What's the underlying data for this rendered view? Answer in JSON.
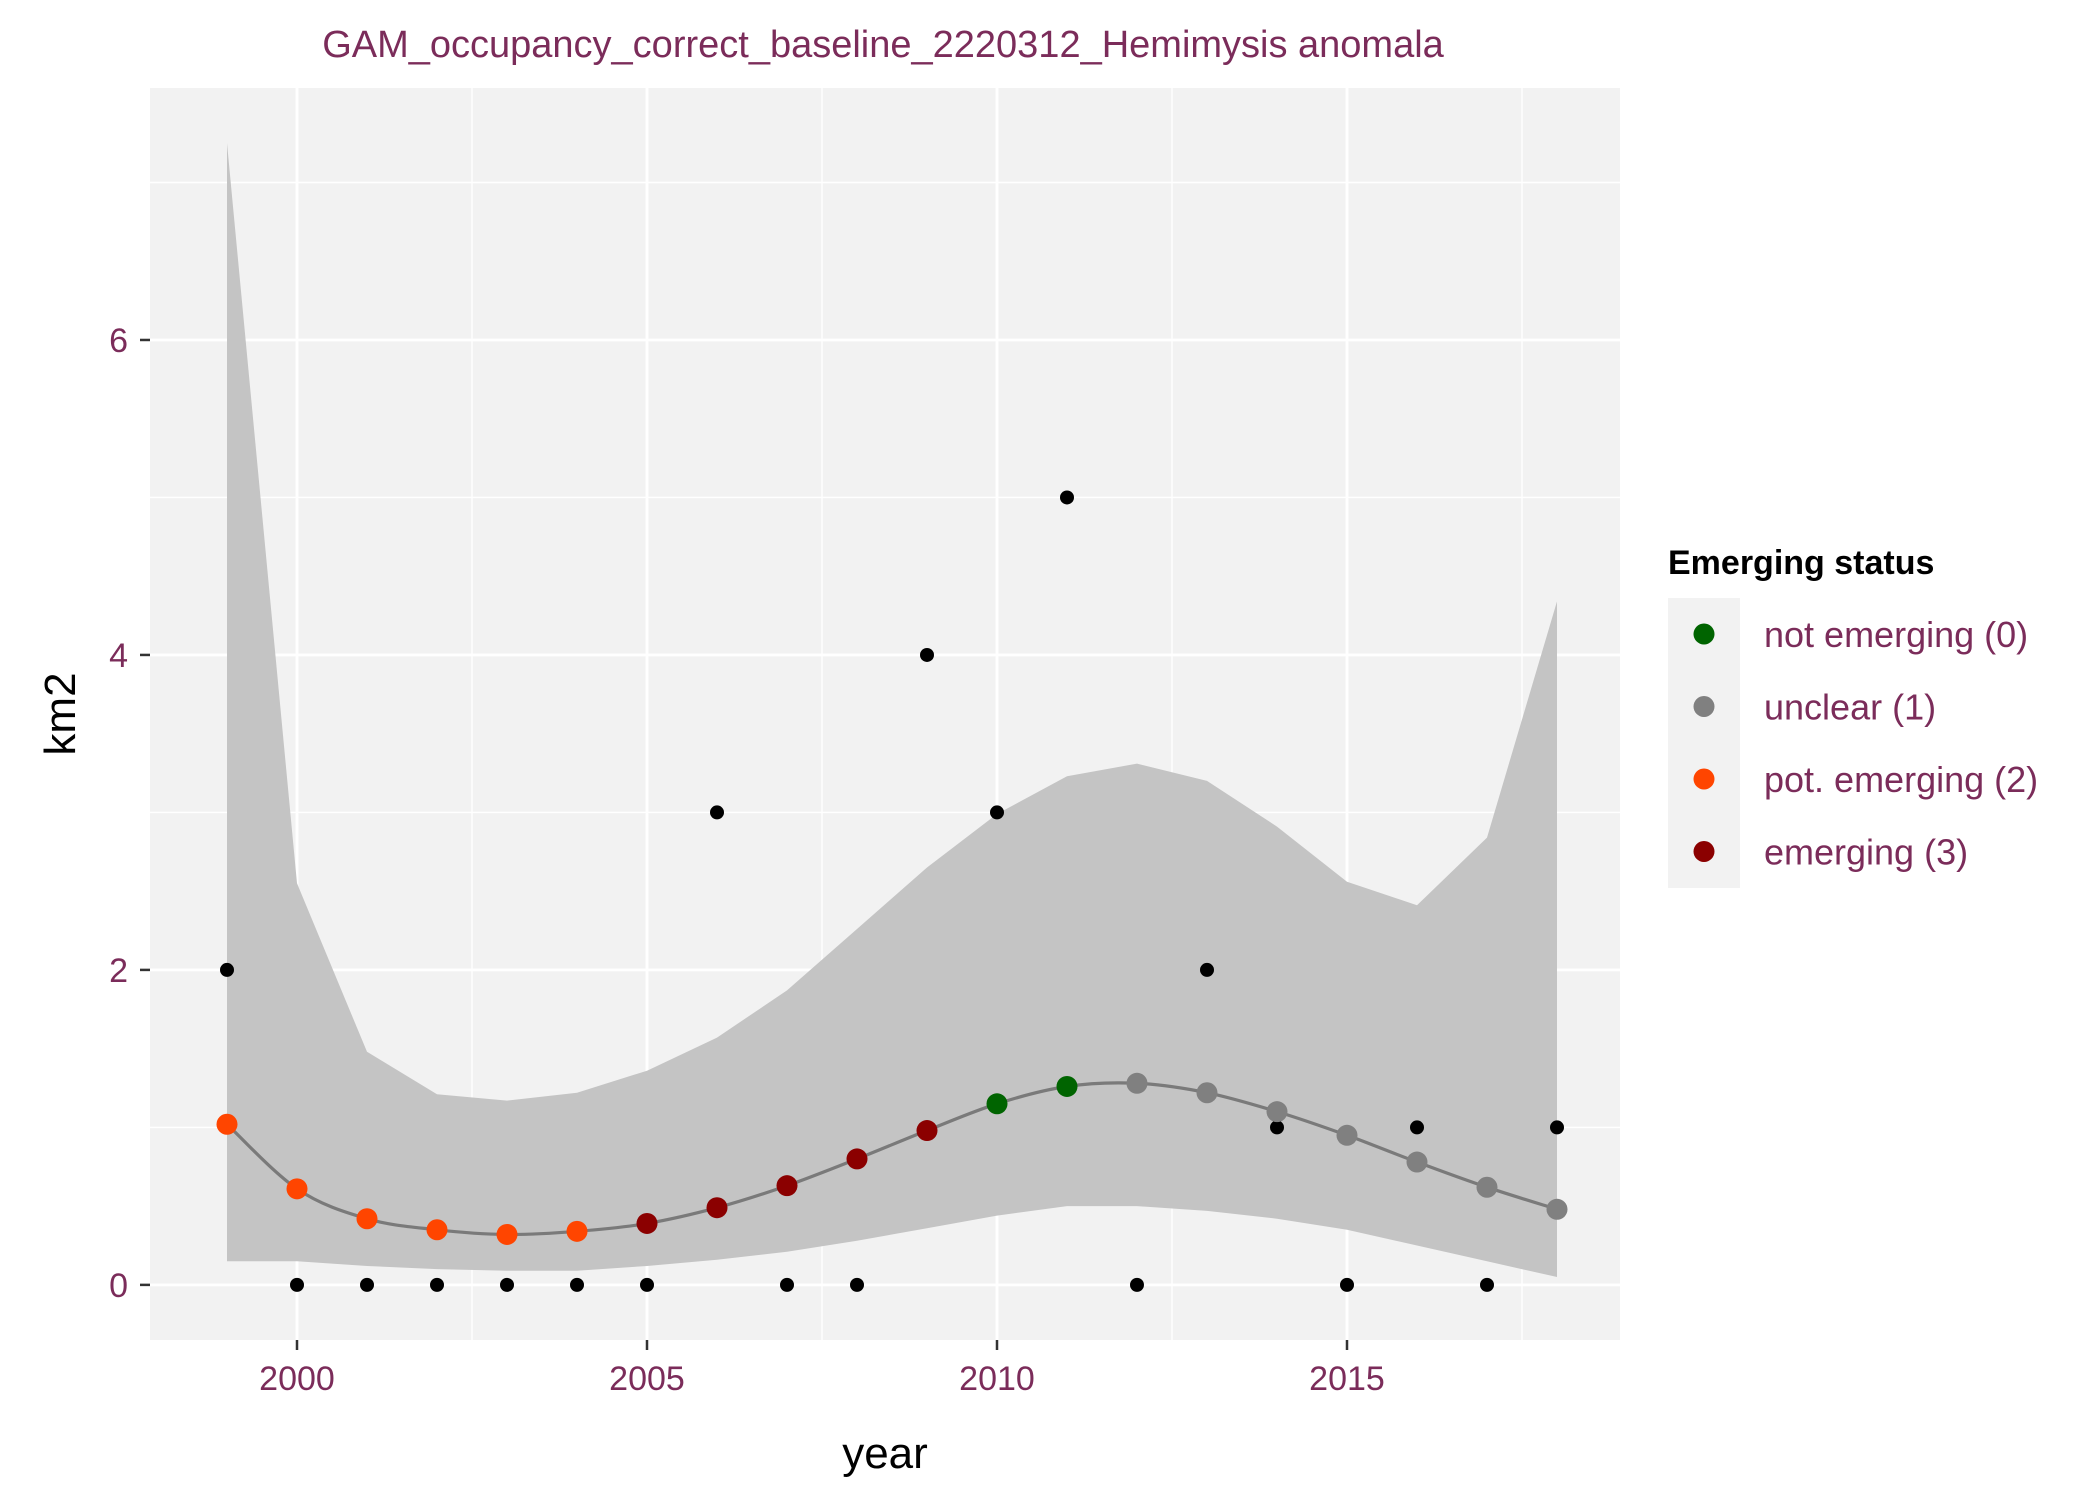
{
  "chart_data": {
    "type": "line",
    "title": "GAM_occupancy_correct_baseline_2220312_Hemimysis anomala",
    "xlabel": "year",
    "ylabel": "km2",
    "xlim": [
      1997.9,
      2018.9
    ],
    "ylim": [
      -0.35,
      7.6
    ],
    "x_ticks": [
      2000,
      2005,
      2010,
      2015
    ],
    "x_tick_labels": [
      "2000",
      "2005",
      "2010",
      "2015"
    ],
    "y_ticks": [
      0,
      2,
      4,
      6
    ],
    "y_tick_labels": [
      "0",
      "2",
      "4",
      "6"
    ],
    "grid": true,
    "legend": {
      "title": "Emerging status",
      "position": "right",
      "entries": [
        {
          "label": "not emerging (0)",
          "color": "#006400"
        },
        {
          "label": "unclear (1)",
          "color": "#808080"
        },
        {
          "label": "pot. emerging (2)",
          "color": "#ff4500"
        },
        {
          "label": "emerging (3)",
          "color": "#8b0000"
        }
      ]
    },
    "colors": {
      "panel": "#f2f2f2",
      "ribbon": "#c4c4c4",
      "fit_line": "#7a7a7a",
      "observed_point": "#000000"
    },
    "observed": {
      "x": [
        1999,
        2000,
        2001,
        2002,
        2003,
        2004,
        2005,
        2006,
        2007,
        2008,
        2009,
        2010,
        2011,
        2012,
        2013,
        2014,
        2015,
        2016,
        2017,
        2018
      ],
      "y": [
        2,
        0,
        0,
        0,
        0,
        0,
        0,
        3,
        0,
        0,
        4,
        3,
        5,
        0,
        2,
        1,
        0,
        1,
        0,
        1
      ]
    },
    "fitted": {
      "x": [
        1999,
        2000,
        2001,
        2002,
        2003,
        2004,
        2005,
        2006,
        2007,
        2008,
        2009,
        2010,
        2011,
        2012,
        2013,
        2014,
        2015,
        2016,
        2017,
        2018
      ],
      "y": [
        1.02,
        0.61,
        0.42,
        0.35,
        0.32,
        0.34,
        0.39,
        0.49,
        0.63,
        0.8,
        0.98,
        1.15,
        1.26,
        1.28,
        1.22,
        1.1,
        0.95,
        0.78,
        0.62,
        0.48
      ],
      "lower": [
        0.15,
        0.15,
        0.12,
        0.1,
        0.09,
        0.09,
        0.12,
        0.16,
        0.21,
        0.28,
        0.36,
        0.44,
        0.5,
        0.5,
        0.47,
        0.42,
        0.35,
        0.25,
        0.15,
        0.05
      ],
      "upper": [
        7.25,
        2.55,
        1.48,
        1.21,
        1.17,
        1.22,
        1.36,
        1.57,
        1.87,
        2.26,
        2.65,
        2.99,
        3.23,
        3.31,
        3.2,
        2.91,
        2.56,
        2.41,
        2.84,
        4.34
      ],
      "status": [
        2,
        2,
        2,
        2,
        2,
        2,
        3,
        3,
        3,
        3,
        3,
        0,
        0,
        1,
        1,
        1,
        1,
        1,
        1,
        1
      ]
    }
  }
}
